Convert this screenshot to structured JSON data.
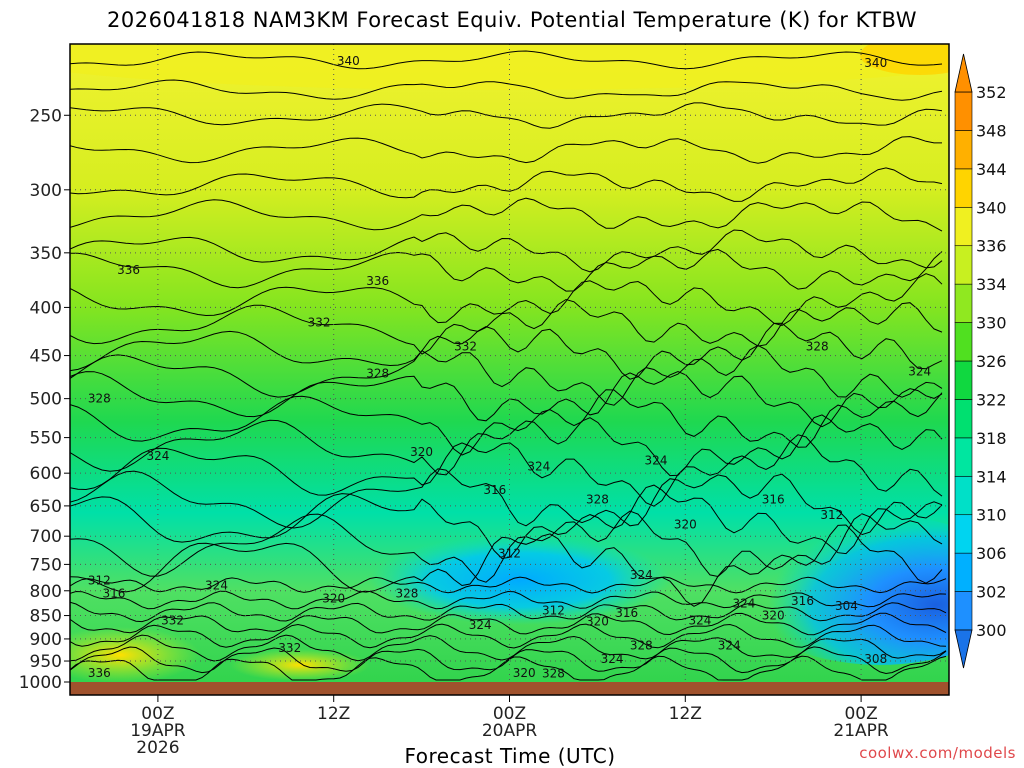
{
  "title": "2026041818 NAM3KM Forecast Equiv. Potential Temperature (K) for KTBW",
  "credit": "coolwx.com/models",
  "chart_data": {
    "type": "heatmap",
    "title": "2026041818 NAM3KM Forecast Equiv. Potential Temperature (K) for KTBW",
    "xlabel": "Forecast Time (UTC)",
    "ylabel": "",
    "y_scale": "log-pressure",
    "y_ticks": [
      250,
      300,
      350,
      400,
      450,
      500,
      550,
      600,
      650,
      700,
      750,
      800,
      850,
      900,
      950,
      1000
    ],
    "ylim": [
      1000,
      210
    ],
    "x_range_utc": [
      "2026-04-18 18Z",
      "2026-04-21 06Z"
    ],
    "x_ticks": [
      {
        "time": "2026-04-19 00Z",
        "label": [
          "00Z",
          "19APR",
          "2026"
        ]
      },
      {
        "time": "2026-04-19 12Z",
        "label": [
          "12Z"
        ]
      },
      {
        "time": "2026-04-20 00Z",
        "label": [
          "00Z",
          "20APR"
        ]
      },
      {
        "time": "2026-04-20 12Z",
        "label": [
          "12Z"
        ]
      },
      {
        "time": "2026-04-21 00Z",
        "label": [
          "00Z",
          "21APR"
        ]
      }
    ],
    "grid": true,
    "colorbar": {
      "levels": [
        300,
        302,
        306,
        310,
        314,
        318,
        322,
        326,
        330,
        334,
        336,
        340,
        344,
        348,
        352
      ],
      "colors": [
        "#1a73e8",
        "#1e90ff",
        "#00b0ff",
        "#00d4f0",
        "#00e0c8",
        "#00e6a0",
        "#00e070",
        "#10d840",
        "#50e020",
        "#90e820",
        "#c8f020",
        "#f0f020",
        "#ffd400",
        "#ffb000",
        "#ff9000"
      ]
    },
    "contour_labels": [
      {
        "value": 340,
        "time": "2026-04-19 13Z",
        "p": 219
      },
      {
        "value": 340,
        "time": "2026-04-21 01Z",
        "p": 220
      },
      {
        "value": 336,
        "time": "2026-04-18 22Z",
        "p": 365
      },
      {
        "value": 336,
        "time": "2026-04-19 15Z",
        "p": 375
      },
      {
        "value": 332,
        "time": "2026-04-19 11Z",
        "p": 415
      },
      {
        "value": 332,
        "time": "2026-04-19 21Z",
        "p": 440
      },
      {
        "value": 328,
        "time": "2026-04-18 20Z",
        "p": 500
      },
      {
        "value": 328,
        "time": "2026-04-19 15Z",
        "p": 470
      },
      {
        "value": 328,
        "time": "2026-04-20 21Z",
        "p": 440
      },
      {
        "value": 324,
        "time": "2026-04-21 04Z",
        "p": 468
      },
      {
        "value": 324,
        "time": "2026-04-19 00Z",
        "p": 575
      },
      {
        "value": 320,
        "time": "2026-04-19 18Z",
        "p": 570
      },
      {
        "value": 324,
        "time": "2026-04-20 02Z",
        "p": 590
      },
      {
        "value": 316,
        "time": "2026-04-19 23Z",
        "p": 625
      },
      {
        "value": 324,
        "time": "2026-04-20 10Z",
        "p": 582
      },
      {
        "value": 328,
        "time": "2026-04-20 06Z",
        "p": 640
      },
      {
        "value": 320,
        "time": "2026-04-20 12Z",
        "p": 680
      },
      {
        "value": 316,
        "time": "2026-04-20 18Z",
        "p": 640
      },
      {
        "value": 312,
        "time": "2026-04-20 22Z",
        "p": 665
      },
      {
        "value": 312,
        "time": "2026-04-20 00Z",
        "p": 730
      },
      {
        "value": 324,
        "time": "2026-04-20 09Z",
        "p": 770
      },
      {
        "value": 312,
        "time": "2026-04-18 20Z",
        "p": 780
      },
      {
        "value": 316,
        "time": "2026-04-18 21Z",
        "p": 805
      },
      {
        "value": 324,
        "time": "2026-04-19 04Z",
        "p": 790
      },
      {
        "value": 320,
        "time": "2026-04-19 12Z",
        "p": 815
      },
      {
        "value": 328,
        "time": "2026-04-19 17Z",
        "p": 805
      },
      {
        "value": 332,
        "time": "2026-04-19 01Z",
        "p": 860
      },
      {
        "value": 324,
        "time": "2026-04-19 22Z",
        "p": 870
      },
      {
        "value": 312,
        "time": "2026-04-20 03Z",
        "p": 840
      },
      {
        "value": 320,
        "time": "2026-04-20 06Z",
        "p": 862
      },
      {
        "value": 316,
        "time": "2026-04-20 08Z",
        "p": 845
      },
      {
        "value": 324,
        "time": "2026-04-20 13Z",
        "p": 860
      },
      {
        "value": 324,
        "time": "2026-04-20 16Z",
        "p": 825
      },
      {
        "value": 316,
        "time": "2026-04-20 20Z",
        "p": 820
      },
      {
        "value": 320,
        "time": "2026-04-20 18Z",
        "p": 850
      },
      {
        "value": 304,
        "time": "2026-04-20 23Z",
        "p": 830
      },
      {
        "value": 332,
        "time": "2026-04-19 09Z",
        "p": 920
      },
      {
        "value": 324,
        "time": "2026-04-20 15Z",
        "p": 915
      },
      {
        "value": 328,
        "time": "2026-04-20 09Z",
        "p": 915
      },
      {
        "value": 324,
        "time": "2026-04-20 07Z",
        "p": 945
      },
      {
        "value": 308,
        "time": "2026-04-21 01Z",
        "p": 945
      },
      {
        "value": 336,
        "time": "2026-04-18 20Z",
        "p": 978
      },
      {
        "value": 320,
        "time": "2026-04-20 01Z",
        "p": 978
      },
      {
        "value": 328,
        "time": "2026-04-20 03Z",
        "p": 980
      }
    ]
  }
}
